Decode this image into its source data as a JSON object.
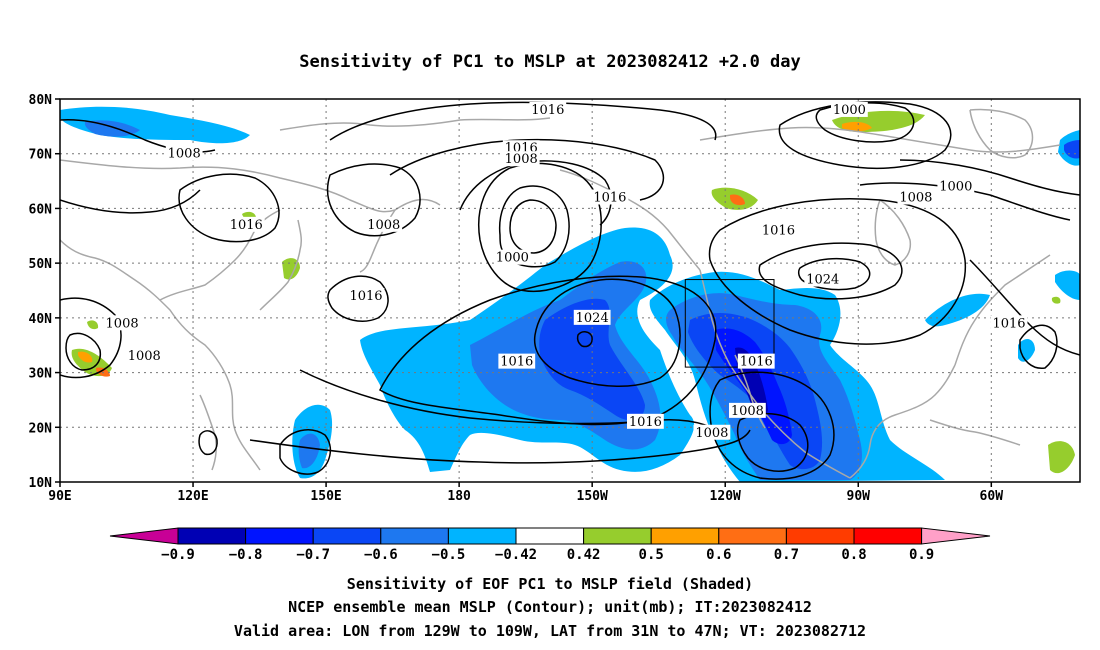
{
  "title": "Sensitivity of PC1 to MSLP at 2023082412 +2.0 day",
  "map": {
    "lat_labels": [
      "80N",
      "70N",
      "60N",
      "50N",
      "40N",
      "30N",
      "20N",
      "10N"
    ],
    "lon_labels": [
      "90E",
      "120E",
      "150E",
      "180",
      "150W",
      "120W",
      "90W",
      "60W"
    ],
    "lon_range": [
      90,
      320
    ],
    "lat_range": [
      10,
      80
    ],
    "gridlines": "dotted",
    "valid_box": {
      "lon": [
        -129,
        -109
      ],
      "lat": [
        31,
        47
      ]
    },
    "contour_labels": [
      {
        "text": "1016",
        "lon": 200,
        "lat": 78
      },
      {
        "text": "1000",
        "lon": 268,
        "lat": 78
      },
      {
        "text": "1008",
        "lon": 118,
        "lat": 70
      },
      {
        "text": "1016",
        "lon": 194,
        "lat": 71
      },
      {
        "text": "1008",
        "lon": 194,
        "lat": 69
      },
      {
        "text": "1000",
        "lon": 292,
        "lat": 64
      },
      {
        "text": "1008",
        "lon": 283,
        "lat": 62
      },
      {
        "text": "1016",
        "lon": 214,
        "lat": 62
      },
      {
        "text": "1016",
        "lon": 252,
        "lat": 56
      },
      {
        "text": "1016",
        "lon": 132,
        "lat": 57
      },
      {
        "text": "1008",
        "lon": 163,
        "lat": 57
      },
      {
        "text": "1000",
        "lon": 192,
        "lat": 51
      },
      {
        "text": "1024",
        "lon": 262,
        "lat": 47
      },
      {
        "text": "1016",
        "lon": 159,
        "lat": 44
      },
      {
        "text": "1024",
        "lon": 210,
        "lat": 40
      },
      {
        "text": "1008",
        "lon": 104,
        "lat": 39
      },
      {
        "text": "1016",
        "lon": 304,
        "lat": 39
      },
      {
        "text": "1008",
        "lon": 109,
        "lat": 33
      },
      {
        "text": "1016",
        "lon": 193,
        "lat": 32
      },
      {
        "text": "1016",
        "lon": 247,
        "lat": 32
      },
      {
        "text": "1016",
        "lon": 222,
        "lat": 21
      },
      {
        "text": "1008",
        "lon": 245,
        "lat": 23
      },
      {
        "text": "1008",
        "lon": 237,
        "lat": 19
      }
    ]
  },
  "colorbar": {
    "levels": [
      "-0.9",
      "-0.8",
      "-0.7",
      "-0.6",
      "-0.5",
      "-0.42",
      "0.42",
      "0.5",
      "0.6",
      "0.7",
      "0.8",
      "0.9"
    ],
    "colors": [
      "#0000b4",
      "#0014ff",
      "#0a46f5",
      "#1e78f0",
      "#00b4ff",
      "#ffffff",
      "#96cd2d",
      "#ffa000",
      "#ff6e14",
      "#ff3c00",
      "#ff0000"
    ],
    "low_extend_color": "#c80096",
    "high_extend_color": "#ffa0c8"
  },
  "captions": [
    "Sensitivity of EOF PC1 to MSLP field (Shaded)",
    "NCEP ensemble mean MSLP (Contour); unit(mb); IT:2023082412",
    "Valid area: LON from 129W to 109W, LAT from 31N to 47N; VT: 2023082712"
  ]
}
